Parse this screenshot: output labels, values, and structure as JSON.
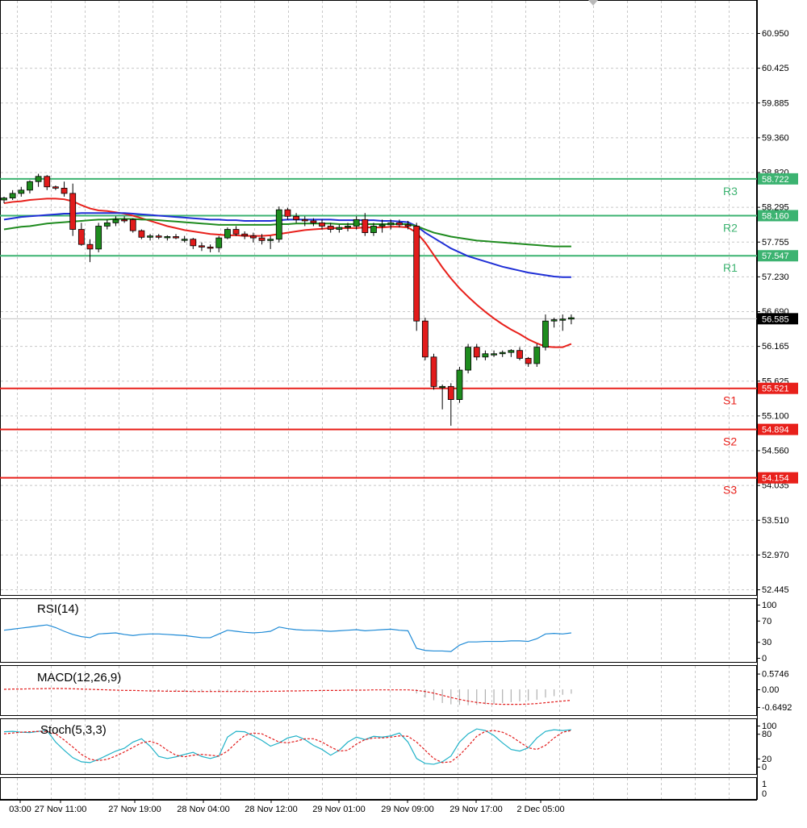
{
  "chart_data": {
    "type": "candlestick",
    "price_axis": {
      "ticks": [
        "60.950",
        "60.425",
        "59.885",
        "59.360",
        "58.820",
        "58.295",
        "57.755",
        "57.230",
        "56.690",
        "56.165",
        "55.625",
        "55.100",
        "54.560",
        "54.035",
        "53.510",
        "52.970",
        "52.445"
      ],
      "range": [
        52.445,
        61.4
      ]
    },
    "time_axis": {
      "labels": [
        "03:00",
        "27 Nov 11:00",
        "27 Nov 19:00",
        "28 Nov 04:00",
        "28 Nov 12:00",
        "29 Nov 01:00",
        "29 Nov 09:00",
        "29 Nov 17:00",
        "2 Dec 05:00"
      ]
    },
    "current_price": {
      "label": "56.585",
      "value": 56.585
    },
    "levels": [
      {
        "name": "R3",
        "label": "58.722",
        "value": 58.722,
        "color": "#3cb371"
      },
      {
        "name": "R2",
        "label": "58.160",
        "value": 58.16,
        "color": "#3cb371"
      },
      {
        "name": "R1",
        "label": "57.547",
        "value": 57.547,
        "color": "#3cb371"
      },
      {
        "name": "S1",
        "label": "55.521",
        "value": 55.521,
        "color": "#e8201b"
      },
      {
        "name": "S2",
        "label": "54.894",
        "value": 54.894,
        "color": "#e8201b"
      },
      {
        "name": "S3",
        "label": "54.154",
        "value": 54.154,
        "color": "#e8201b"
      }
    ],
    "candles": [
      [
        58.4,
        58.45,
        58.35,
        58.43
      ],
      [
        58.43,
        58.55,
        58.4,
        58.5
      ],
      [
        58.5,
        58.6,
        58.45,
        58.55
      ],
      [
        58.55,
        58.7,
        58.5,
        58.68
      ],
      [
        58.68,
        58.8,
        58.6,
        58.76
      ],
      [
        58.76,
        58.78,
        58.55,
        58.6
      ],
      [
        58.6,
        58.62,
        58.55,
        58.58
      ],
      [
        58.58,
        58.68,
        58.45,
        58.5
      ],
      [
        58.5,
        58.65,
        57.85,
        57.95
      ],
      [
        57.95,
        58.05,
        57.7,
        57.72
      ],
      [
        57.72,
        57.8,
        57.45,
        57.65
      ],
      [
        57.65,
        58.05,
        57.6,
        58.0
      ],
      [
        58.0,
        58.1,
        57.95,
        58.05
      ],
      [
        58.05,
        58.15,
        58.0,
        58.1
      ],
      [
        58.1,
        58.15,
        58.05,
        58.08
      ],
      [
        58.1,
        58.12,
        57.9,
        57.93
      ],
      [
        57.93,
        57.95,
        57.8,
        57.83
      ],
      [
        57.83,
        57.88,
        57.78,
        57.85
      ],
      [
        57.85,
        57.88,
        57.8,
        57.83
      ],
      [
        57.83,
        57.86,
        57.78,
        57.84
      ],
      [
        57.84,
        57.88,
        57.8,
        57.82
      ],
      [
        57.8,
        57.85,
        57.75,
        57.8
      ],
      [
        57.8,
        57.82,
        57.65,
        57.7
      ],
      [
        57.7,
        57.75,
        57.62,
        57.68
      ],
      [
        57.68,
        57.72,
        57.6,
        57.67
      ],
      [
        57.67,
        57.85,
        57.6,
        57.82
      ],
      [
        57.82,
        57.98,
        57.8,
        57.95
      ],
      [
        57.95,
        58.0,
        57.85,
        57.88
      ],
      [
        57.88,
        57.92,
        57.8,
        57.85
      ],
      [
        57.85,
        57.9,
        57.75,
        57.82
      ],
      [
        57.82,
        57.88,
        57.72,
        57.78
      ],
      [
        57.78,
        57.85,
        57.65,
        57.8
      ],
      [
        57.8,
        58.3,
        57.75,
        58.25
      ],
      [
        58.25,
        58.28,
        58.1,
        58.15
      ],
      [
        58.15,
        58.2,
        58.05,
        58.1
      ],
      [
        58.1,
        58.15,
        58.0,
        58.08
      ],
      [
        58.08,
        58.12,
        58.0,
        58.05
      ],
      [
        58.05,
        58.1,
        57.95,
        58.0
      ],
      [
        58.0,
        58.05,
        57.9,
        57.95
      ],
      [
        57.95,
        58.02,
        57.9,
        57.98
      ],
      [
        57.98,
        58.05,
        57.92,
        58.0
      ],
      [
        58.0,
        58.15,
        57.95,
        58.1
      ],
      [
        58.1,
        58.2,
        57.85,
        57.9
      ],
      [
        57.9,
        58.05,
        57.85,
        58.0
      ],
      [
        58.0,
        58.1,
        57.9,
        58.02
      ],
      [
        58.02,
        58.1,
        57.95,
        58.05
      ],
      [
        58.05,
        58.1,
        57.98,
        58.02
      ],
      [
        58.02,
        58.08,
        57.95,
        58.0
      ],
      [
        58.0,
        58.05,
        56.4,
        56.55
      ],
      [
        56.55,
        56.6,
        55.95,
        56.0
      ],
      [
        56.0,
        56.05,
        55.5,
        55.55
      ],
      [
        55.55,
        55.58,
        55.2,
        55.55
      ],
      [
        55.55,
        55.6,
        54.95,
        55.35
      ],
      [
        55.35,
        55.85,
        55.3,
        55.8
      ],
      [
        55.8,
        56.2,
        55.75,
        56.15
      ],
      [
        56.15,
        56.2,
        55.95,
        56.0
      ],
      [
        56.0,
        56.1,
        55.95,
        56.05
      ],
      [
        56.05,
        56.1,
        56.0,
        56.05
      ],
      [
        56.05,
        56.1,
        56.0,
        56.07
      ],
      [
        56.07,
        56.12,
        56.0,
        56.1
      ],
      [
        56.1,
        56.15,
        55.95,
        55.98
      ],
      [
        55.98,
        56.0,
        55.85,
        55.9
      ],
      [
        55.9,
        56.2,
        55.85,
        56.15
      ],
      [
        56.15,
        56.65,
        56.1,
        56.55
      ],
      [
        56.55,
        56.6,
        56.45,
        56.57
      ],
      [
        56.57,
        56.65,
        56.4,
        56.58
      ],
      [
        56.58,
        56.65,
        56.5,
        56.6
      ]
    ],
    "ma_series": [
      {
        "color": "#e8201b",
        "values": [
          58.35,
          58.37,
          58.38,
          58.4,
          58.41,
          58.42,
          58.42,
          58.41,
          58.38,
          58.32,
          58.27,
          58.24,
          58.23,
          58.21,
          58.19,
          58.16,
          58.12,
          58.08,
          58.04,
          58.0,
          57.97,
          57.94,
          57.92,
          57.9,
          57.88,
          57.87,
          57.86,
          57.86,
          57.85,
          57.85,
          57.85,
          57.86,
          57.88,
          57.9,
          57.92,
          57.94,
          57.95,
          57.96,
          57.97,
          57.97,
          57.97,
          57.97,
          57.98,
          57.98,
          57.98,
          57.99,
          57.99,
          57.98,
          57.9,
          57.75,
          57.56,
          57.37,
          57.2,
          57.05,
          56.92,
          56.8,
          56.69,
          56.59,
          56.5,
          56.42,
          56.35,
          56.27,
          56.21,
          56.16,
          56.15,
          56.15,
          56.2
        ]
      },
      {
        "color": "#1f2fd6",
        "values": [
          58.1,
          58.12,
          58.14,
          58.15,
          58.16,
          58.17,
          58.18,
          58.19,
          58.19,
          58.2,
          58.2,
          58.2,
          58.2,
          58.2,
          58.2,
          58.19,
          58.18,
          58.17,
          58.16,
          58.15,
          58.14,
          58.13,
          58.12,
          58.11,
          58.1,
          58.1,
          58.09,
          58.09,
          58.08,
          58.08,
          58.08,
          58.08,
          58.09,
          58.1,
          58.1,
          58.1,
          58.1,
          58.1,
          58.1,
          58.09,
          58.09,
          58.09,
          58.09,
          58.09,
          58.08,
          58.08,
          58.07,
          58.06,
          58.0,
          57.9,
          57.82,
          57.74,
          57.66,
          57.6,
          57.54,
          57.5,
          57.46,
          57.42,
          57.38,
          57.35,
          57.32,
          57.29,
          57.27,
          57.25,
          57.23,
          57.22,
          57.22
        ]
      },
      {
        "color": "#1f8b1f",
        "values": [
          57.95,
          57.97,
          57.99,
          58.0,
          58.02,
          58.04,
          58.05,
          58.06,
          58.07,
          58.08,
          58.09,
          58.1,
          58.1,
          58.11,
          58.11,
          58.11,
          58.1,
          58.1,
          58.09,
          58.08,
          58.07,
          58.06,
          58.05,
          58.04,
          58.03,
          58.02,
          58.02,
          58.02,
          58.02,
          58.02,
          58.02,
          58.02,
          58.03,
          58.03,
          58.04,
          58.04,
          58.04,
          58.04,
          58.04,
          58.03,
          58.03,
          58.03,
          58.03,
          58.03,
          58.03,
          58.03,
          58.03,
          58.03,
          58.0,
          57.95,
          57.9,
          57.87,
          57.84,
          57.82,
          57.8,
          57.78,
          57.77,
          57.76,
          57.75,
          57.74,
          57.73,
          57.72,
          57.71,
          57.7,
          57.69,
          57.69,
          57.69
        ]
      }
    ],
    "indicators": {
      "rsi": {
        "title": "RSI(14)",
        "ticks": [
          "100",
          "70",
          "30",
          "0"
        ],
        "values": [
          52,
          54,
          56,
          58,
          60,
          62,
          57,
          50,
          44,
          40,
          38,
          45,
          46,
          47,
          44,
          42,
          44,
          45,
          45,
          44,
          43,
          42,
          40,
          38,
          38,
          45,
          52,
          50,
          48,
          47,
          48,
          50,
          58,
          55,
          53,
          52,
          52,
          51,
          50,
          51,
          52,
          53,
          51,
          52,
          53,
          54,
          52,
          51,
          18,
          14,
          13,
          13,
          12,
          24,
          30,
          30,
          31,
          31,
          31,
          32,
          32,
          31,
          36,
          45,
          46,
          45,
          47
        ]
      },
      "macd": {
        "title": "MACD(12,26,9)",
        "ticks": [
          "0.5746",
          "0.00",
          "-0.6492"
        ],
        "hist": [
          0.02,
          0.03,
          0.04,
          0.05,
          0.06,
          0.06,
          0.05,
          0.04,
          0.01,
          -0.02,
          -0.04,
          -0.04,
          -0.04,
          -0.05,
          -0.05,
          -0.06,
          -0.07,
          -0.08,
          -0.08,
          -0.09,
          -0.09,
          -0.09,
          -0.1,
          -0.1,
          -0.1,
          -0.09,
          -0.08,
          -0.08,
          -0.08,
          -0.07,
          -0.07,
          -0.07,
          -0.05,
          -0.04,
          -0.04,
          -0.03,
          -0.03,
          -0.03,
          -0.03,
          -0.03,
          -0.02,
          -0.02,
          -0.02,
          -0.02,
          -0.02,
          -0.01,
          -0.01,
          -0.01,
          -0.15,
          -0.3,
          -0.4,
          -0.5,
          -0.55,
          -0.57,
          -0.58,
          -0.57,
          -0.55,
          -0.53,
          -0.5,
          -0.47,
          -0.44,
          -0.42,
          -0.38,
          -0.3,
          -0.25,
          -0.2,
          -0.16
        ],
        "signal": [
          0.0,
          0.01,
          0.01,
          0.02,
          0.02,
          0.03,
          0.03,
          0.03,
          0.02,
          0.01,
          0.0,
          -0.01,
          -0.02,
          -0.03,
          -0.04,
          -0.04,
          -0.05,
          -0.06,
          -0.06,
          -0.07,
          -0.07,
          -0.07,
          -0.08,
          -0.08,
          -0.08,
          -0.08,
          -0.08,
          -0.08,
          -0.08,
          -0.08,
          -0.08,
          -0.07,
          -0.07,
          -0.06,
          -0.06,
          -0.05,
          -0.05,
          -0.04,
          -0.04,
          -0.04,
          -0.03,
          -0.03,
          -0.03,
          -0.02,
          -0.02,
          -0.02,
          -0.02,
          -0.02,
          -0.04,
          -0.08,
          -0.14,
          -0.22,
          -0.3,
          -0.37,
          -0.43,
          -0.48,
          -0.51,
          -0.54,
          -0.55,
          -0.55,
          -0.55,
          -0.54,
          -0.52,
          -0.49,
          -0.46,
          -0.43,
          -0.4
        ]
      },
      "stoch": {
        "title": "Stoch(5,3,3)",
        "ticks": [
          "100",
          "80",
          "20",
          "0"
        ],
        "main": [
          85,
          86,
          84,
          83,
          86,
          88,
          60,
          40,
          22,
          12,
          10,
          18,
          28,
          38,
          45,
          60,
          68,
          50,
          25,
          20,
          24,
          30,
          35,
          25,
          20,
          26,
          72,
          86,
          85,
          75,
          64,
          50,
          58,
          70,
          75,
          66,
          52,
          42,
          28,
          40,
          60,
          72,
          66,
          74,
          72,
          75,
          82,
          60,
          20,
          8,
          6,
          12,
          26,
          60,
          80,
          92,
          88,
          76,
          58,
          42,
          38,
          46,
          70,
          86,
          90,
          88,
          90
        ],
        "signal": [
          80,
          82,
          84,
          85,
          86,
          86,
          80,
          65,
          48,
          30,
          18,
          15,
          18,
          26,
          36,
          47,
          58,
          62,
          55,
          40,
          28,
          24,
          28,
          30,
          28,
          26,
          38,
          58,
          76,
          82,
          80,
          70,
          60,
          58,
          62,
          68,
          68,
          60,
          48,
          38,
          40,
          55,
          66,
          70,
          70,
          72,
          75,
          74,
          60,
          40,
          20,
          10,
          12,
          28,
          50,
          74,
          86,
          88,
          84,
          74,
          60,
          46,
          42,
          52,
          70,
          84,
          88
        ]
      }
    }
  }
}
